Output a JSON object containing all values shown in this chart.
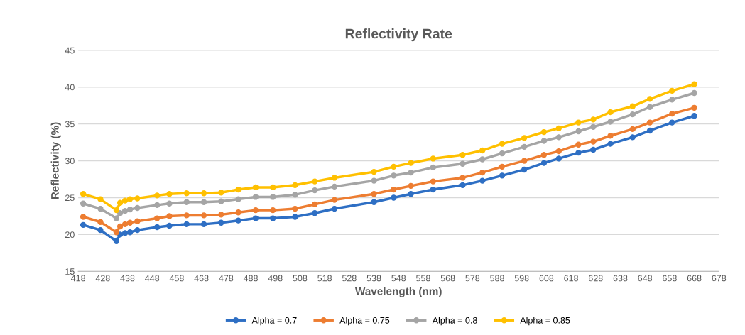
{
  "chart_data": {
    "type": "line",
    "title": "Reflectivity Rate",
    "xlabel": "Wavelength (nm)",
    "ylabel": "Reflectivity (%)",
    "x": [
      420,
      427,
      433.5,
      435,
      437,
      439,
      442,
      450,
      455,
      462,
      469,
      476,
      483,
      490,
      497,
      506,
      514,
      522,
      538,
      546,
      553,
      562,
      574,
      582,
      590,
      599,
      607,
      613,
      621,
      627,
      634,
      643,
      650,
      659,
      668
    ],
    "series": [
      {
        "name": "Alpha = 0.7",
        "color": "#2e6fc4",
        "values": [
          21.3,
          20.6,
          19.1,
          20.0,
          20.2,
          20.3,
          20.6,
          21.0,
          21.2,
          21.4,
          21.4,
          21.6,
          21.9,
          22.2,
          22.2,
          22.4,
          22.9,
          23.5,
          24.4,
          25.0,
          25.5,
          26.1,
          26.7,
          27.3,
          28.0,
          28.8,
          29.7,
          30.3,
          31.1,
          31.5,
          32.3,
          33.2,
          34.1,
          35.2,
          36.1
        ]
      },
      {
        "name": "Alpha = 0.75",
        "color": "#ed7d31",
        "values": [
          22.4,
          21.7,
          20.3,
          21.1,
          21.4,
          21.6,
          21.8,
          22.2,
          22.5,
          22.6,
          22.6,
          22.7,
          23.0,
          23.3,
          23.3,
          23.5,
          24.1,
          24.7,
          25.5,
          26.1,
          26.6,
          27.2,
          27.7,
          28.4,
          29.2,
          30.0,
          30.8,
          31.3,
          32.2,
          32.6,
          33.4,
          34.3,
          35.2,
          36.4,
          37.2
        ]
      },
      {
        "name": "Alpha = 0.8",
        "color": "#a5a5a5",
        "values": [
          24.2,
          23.5,
          22.2,
          22.9,
          23.2,
          23.4,
          23.6,
          24.0,
          24.2,
          24.4,
          24.4,
          24.5,
          24.8,
          25.1,
          25.1,
          25.4,
          26.0,
          26.5,
          27.3,
          28.0,
          28.4,
          29.1,
          29.6,
          30.2,
          31.0,
          31.9,
          32.7,
          33.2,
          34.0,
          34.6,
          35.3,
          36.3,
          37.3,
          38.3,
          39.2
        ]
      },
      {
        "name": "Alpha = 0.85",
        "color": "#ffc000",
        "values": [
          25.5,
          24.8,
          23.3,
          24.3,
          24.6,
          24.8,
          24.9,
          25.3,
          25.5,
          25.6,
          25.6,
          25.7,
          26.1,
          26.4,
          26.4,
          26.7,
          27.2,
          27.7,
          28.5,
          29.2,
          29.7,
          30.3,
          30.8,
          31.4,
          32.3,
          33.1,
          33.9,
          34.4,
          35.2,
          35.6,
          36.6,
          37.4,
          38.4,
          39.5,
          40.4
        ]
      }
    ],
    "xlim": [
      418,
      678
    ],
    "xticks": [
      418,
      428,
      438,
      448,
      458,
      468,
      478,
      488,
      498,
      508,
      518,
      528,
      538,
      548,
      558,
      568,
      578,
      588,
      598,
      608,
      618,
      628,
      638,
      648,
      658,
      668,
      678
    ],
    "ylim": [
      15,
      45
    ],
    "yticks": [
      15,
      20,
      25,
      30,
      35,
      40,
      45
    ],
    "grid": "y",
    "legend": "bottom",
    "marker": "circle",
    "line_style": "solid"
  }
}
